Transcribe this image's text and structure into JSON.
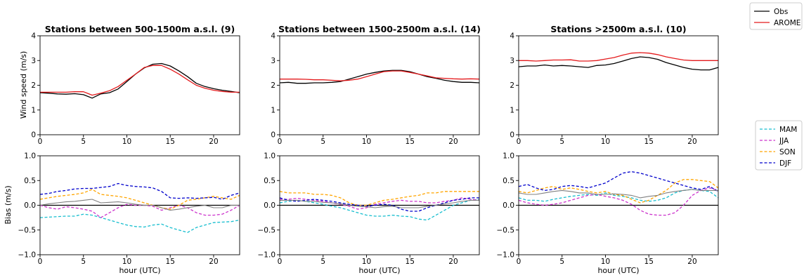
{
  "figure": {
    "top_legend": [
      {
        "label": "Obs",
        "color": "#000000",
        "style": "solid"
      },
      {
        "label": "AROME",
        "color": "#e41a1c",
        "style": "solid"
      }
    ],
    "bottom_legend": [
      {
        "label": "MAM",
        "color": "#17becf",
        "style": "dashed"
      },
      {
        "label": "JJA",
        "color": "#cc33cc",
        "style": "dashed"
      },
      {
        "label": "SON",
        "color": "#ffa500",
        "style": "dashed"
      },
      {
        "label": "DJF",
        "color": "#0000cc",
        "style": "dashed"
      }
    ],
    "xlabel": "hour (UTC)",
    "ylabel_top": "Wind speed (m/s)",
    "ylabel_bottom": "Bias (m/s)",
    "mean_bias_color": "#808080",
    "zero_line_color": "#000000"
  },
  "chart_data": [
    {
      "type": "line",
      "title": "Stations between 500-1500m a.s.l. (9)",
      "x": [
        0,
        1,
        2,
        3,
        4,
        5,
        6,
        7,
        8,
        9,
        10,
        11,
        12,
        13,
        14,
        15,
        16,
        17,
        18,
        19,
        20,
        21,
        22,
        23
      ],
      "xlim": [
        0,
        23
      ],
      "xticks": [
        0,
        5,
        10,
        15,
        20
      ],
      "ylim": [
        0,
        4
      ],
      "yticks": [
        0,
        1,
        2,
        3,
        4
      ],
      "series": [
        {
          "name": "Obs",
          "values": [
            1.7,
            1.68,
            1.65,
            1.64,
            1.66,
            1.62,
            1.48,
            1.65,
            1.7,
            1.85,
            2.15,
            2.45,
            2.7,
            2.85,
            2.88,
            2.78,
            2.58,
            2.35,
            2.08,
            1.95,
            1.86,
            1.8,
            1.75,
            1.7
          ]
        },
        {
          "name": "AROME",
          "values": [
            1.72,
            1.72,
            1.72,
            1.72,
            1.74,
            1.74,
            1.6,
            1.68,
            1.78,
            1.95,
            2.2,
            2.45,
            2.72,
            2.8,
            2.8,
            2.65,
            2.45,
            2.22,
            2.0,
            1.88,
            1.8,
            1.75,
            1.72,
            1.72
          ]
        }
      ]
    },
    {
      "type": "line",
      "title": "Stations between 1500-2500m a.s.l. (14)",
      "x": [
        0,
        1,
        2,
        3,
        4,
        5,
        6,
        7,
        8,
        9,
        10,
        11,
        12,
        13,
        14,
        15,
        16,
        17,
        18,
        19,
        20,
        21,
        22,
        23
      ],
      "xlim": [
        0,
        23
      ],
      "xticks": [
        0,
        5,
        10,
        15,
        20
      ],
      "ylim": [
        0,
        4
      ],
      "yticks": [
        0,
        1,
        2,
        3,
        4
      ],
      "series": [
        {
          "name": "Obs",
          "values": [
            2.1,
            2.12,
            2.08,
            2.08,
            2.1,
            2.1,
            2.12,
            2.15,
            2.25,
            2.35,
            2.45,
            2.52,
            2.58,
            2.6,
            2.6,
            2.55,
            2.45,
            2.35,
            2.28,
            2.2,
            2.15,
            2.12,
            2.12,
            2.1
          ]
        },
        {
          "name": "AROME",
          "values": [
            2.25,
            2.25,
            2.25,
            2.24,
            2.22,
            2.22,
            2.2,
            2.18,
            2.2,
            2.25,
            2.35,
            2.45,
            2.55,
            2.58,
            2.58,
            2.52,
            2.45,
            2.38,
            2.3,
            2.28,
            2.26,
            2.25,
            2.26,
            2.25
          ]
        }
      ]
    },
    {
      "type": "line",
      "title": "Stations >2500m a.s.l. (10)",
      "x": [
        0,
        1,
        2,
        3,
        4,
        5,
        6,
        7,
        8,
        9,
        10,
        11,
        12,
        13,
        14,
        15,
        16,
        17,
        18,
        19,
        20,
        21,
        22,
        23
      ],
      "xlim": [
        0,
        23
      ],
      "xticks": [
        0,
        5,
        10,
        15,
        20
      ],
      "ylim": [
        0,
        4
      ],
      "yticks": [
        0,
        1,
        2,
        3,
        4
      ],
      "series": [
        {
          "name": "Obs",
          "values": [
            2.75,
            2.78,
            2.78,
            2.82,
            2.78,
            2.8,
            2.78,
            2.75,
            2.72,
            2.8,
            2.82,
            2.88,
            2.98,
            3.08,
            3.15,
            3.12,
            3.05,
            2.92,
            2.82,
            2.72,
            2.65,
            2.62,
            2.62,
            2.72
          ]
        },
        {
          "name": "AROME",
          "values": [
            3.0,
            3.0,
            2.98,
            3.0,
            3.02,
            3.02,
            3.03,
            2.98,
            2.98,
            3.0,
            3.06,
            3.12,
            3.22,
            3.3,
            3.32,
            3.3,
            3.24,
            3.15,
            3.08,
            3.02,
            3.0,
            3.0,
            3.0,
            3.0
          ]
        }
      ]
    },
    {
      "type": "line",
      "xlabel": "hour (UTC)",
      "x": [
        0,
        1,
        2,
        3,
        4,
        5,
        6,
        7,
        8,
        9,
        10,
        11,
        12,
        13,
        14,
        15,
        16,
        17,
        18,
        19,
        20,
        21,
        22,
        23
      ],
      "xlim": [
        0,
        23
      ],
      "xticks": [
        0,
        5,
        10,
        15,
        20
      ],
      "ylim": [
        -1,
        1
      ],
      "yticks": [
        -1.0,
        -0.5,
        0.0,
        0.5,
        1.0
      ],
      "series": [
        {
          "name": "MAM",
          "values": [
            -0.25,
            -0.24,
            -0.23,
            -0.22,
            -0.22,
            -0.18,
            -0.2,
            -0.25,
            -0.3,
            -0.35,
            -0.4,
            -0.43,
            -0.44,
            -0.4,
            -0.38,
            -0.45,
            -0.5,
            -0.55,
            -0.45,
            -0.4,
            -0.35,
            -0.34,
            -0.33,
            -0.3
          ]
        },
        {
          "name": "JJA",
          "values": [
            0.0,
            -0.05,
            -0.08,
            -0.03,
            -0.05,
            -0.08,
            -0.12,
            -0.25,
            -0.15,
            -0.05,
            0.02,
            0.0,
            0.0,
            -0.02,
            -0.1,
            -0.05,
            0.0,
            -0.05,
            -0.15,
            -0.2,
            -0.2,
            -0.18,
            -0.1,
            0.0
          ]
        },
        {
          "name": "SON",
          "values": [
            0.12,
            0.15,
            0.18,
            0.2,
            0.22,
            0.25,
            0.32,
            0.22,
            0.2,
            0.18,
            0.15,
            0.1,
            0.05,
            0.0,
            -0.05,
            -0.08,
            0.0,
            0.1,
            0.12,
            0.15,
            0.18,
            0.15,
            0.12,
            0.2
          ]
        },
        {
          "name": "DJF",
          "values": [
            0.22,
            0.24,
            0.28,
            0.3,
            0.33,
            0.34,
            0.34,
            0.36,
            0.38,
            0.44,
            0.4,
            0.38,
            0.37,
            0.35,
            0.28,
            0.15,
            0.14,
            0.15,
            0.14,
            0.15,
            0.16,
            0.12,
            0.2,
            0.25
          ]
        },
        {
          "name": "",
          "values": [
            0.0,
            0.03,
            0.05,
            0.07,
            0.08,
            0.1,
            0.12,
            0.05,
            0.06,
            0.07,
            0.05,
            0.02,
            0.0,
            0.0,
            -0.05,
            -0.1,
            -0.08,
            -0.05,
            -0.02,
            0.0,
            -0.05,
            -0.05,
            0.0,
            0.0
          ]
        }
      ]
    },
    {
      "type": "line",
      "xlabel": "hour (UTC)",
      "x": [
        0,
        1,
        2,
        3,
        4,
        5,
        6,
        7,
        8,
        9,
        10,
        11,
        12,
        13,
        14,
        15,
        16,
        17,
        18,
        19,
        20,
        21,
        22,
        23
      ],
      "xlim": [
        0,
        23
      ],
      "xticks": [
        0,
        5,
        10,
        15,
        20
      ],
      "ylim": [
        -1,
        1
      ],
      "yticks": [
        -1.0,
        -0.5,
        0.0,
        0.5,
        1.0
      ],
      "series": [
        {
          "name": "MAM",
          "values": [
            0.05,
            0.08,
            0.1,
            0.08,
            0.05,
            0.02,
            -0.02,
            -0.05,
            -0.1,
            -0.15,
            -0.2,
            -0.22,
            -0.22,
            -0.2,
            -0.22,
            -0.23,
            -0.28,
            -0.3,
            -0.2,
            -0.1,
            0.0,
            0.05,
            0.1,
            0.12
          ]
        },
        {
          "name": "JJA",
          "values": [
            0.12,
            0.12,
            0.14,
            0.12,
            0.1,
            0.08,
            0.05,
            0.02,
            -0.02,
            -0.08,
            -0.05,
            0.02,
            0.05,
            0.08,
            0.1,
            0.08,
            0.08,
            0.05,
            0.05,
            0.08,
            0.1,
            0.15,
            0.12,
            0.1
          ]
        },
        {
          "name": "SON",
          "values": [
            0.28,
            0.25,
            0.25,
            0.25,
            0.22,
            0.22,
            0.2,
            0.15,
            0.05,
            0.0,
            0.0,
            0.05,
            0.1,
            0.12,
            0.15,
            0.18,
            0.2,
            0.25,
            0.25,
            0.28,
            0.28,
            0.28,
            0.28,
            0.28
          ]
        },
        {
          "name": "DJF",
          "values": [
            0.15,
            0.1,
            0.08,
            0.1,
            0.12,
            0.1,
            0.08,
            0.05,
            0.02,
            0.0,
            -0.02,
            0.0,
            0.02,
            0.0,
            -0.08,
            -0.12,
            -0.12,
            -0.05,
            0.0,
            0.05,
            0.1,
            0.12,
            0.15,
            0.15
          ]
        },
        {
          "name": "",
          "values": [
            0.1,
            0.1,
            0.1,
            0.08,
            0.08,
            0.06,
            0.05,
            0.03,
            0.0,
            -0.02,
            -0.03,
            -0.05,
            -0.03,
            -0.02,
            -0.05,
            -0.05,
            -0.05,
            -0.02,
            0.0,
            0.03,
            0.05,
            0.08,
            0.1,
            0.1
          ]
        }
      ]
    },
    {
      "type": "line",
      "xlabel": "hour (UTC)",
      "x": [
        0,
        1,
        2,
        3,
        4,
        5,
        6,
        7,
        8,
        9,
        10,
        11,
        12,
        13,
        14,
        15,
        16,
        17,
        18,
        19,
        20,
        21,
        22,
        23
      ],
      "xlim": [
        0,
        23
      ],
      "xticks": [
        0,
        5,
        10,
        15,
        20
      ],
      "ylim": [
        -1,
        1
      ],
      "yticks": [
        -1.0,
        -0.5,
        0.0,
        0.5,
        1.0
      ],
      "series": [
        {
          "name": "MAM",
          "values": [
            0.15,
            0.1,
            0.1,
            0.08,
            0.12,
            0.15,
            0.18,
            0.2,
            0.22,
            0.2,
            0.25,
            0.2,
            0.18,
            0.15,
            0.1,
            0.08,
            0.1,
            0.15,
            0.25,
            0.3,
            0.32,
            0.3,
            0.28,
            0.15
          ]
        },
        {
          "name": "JJA",
          "values": [
            0.1,
            0.05,
            0.02,
            0.0,
            0.02,
            0.05,
            0.1,
            0.15,
            0.2,
            0.22,
            0.18,
            0.15,
            0.1,
            0.02,
            -0.1,
            -0.18,
            -0.2,
            -0.2,
            -0.15,
            0.0,
            0.2,
            0.3,
            0.35,
            0.3
          ]
        },
        {
          "name": "SON",
          "values": [
            0.28,
            0.25,
            0.3,
            0.35,
            0.38,
            0.32,
            0.35,
            0.32,
            0.28,
            0.25,
            0.28,
            0.22,
            0.2,
            0.12,
            0.05,
            0.1,
            0.2,
            0.3,
            0.45,
            0.52,
            0.52,
            0.5,
            0.48,
            0.35
          ]
        },
        {
          "name": "DJF",
          "values": [
            0.38,
            0.42,
            0.35,
            0.3,
            0.32,
            0.38,
            0.4,
            0.38,
            0.35,
            0.4,
            0.45,
            0.55,
            0.65,
            0.68,
            0.65,
            0.6,
            0.55,
            0.5,
            0.45,
            0.4,
            0.35,
            0.32,
            0.38,
            0.28
          ]
        },
        {
          "name": "",
          "values": [
            0.25,
            0.22,
            0.22,
            0.25,
            0.28,
            0.3,
            0.28,
            0.25,
            0.25,
            0.22,
            0.22,
            0.23,
            0.22,
            0.2,
            0.15,
            0.18,
            0.2,
            0.25,
            0.28,
            0.3,
            0.32,
            0.3,
            0.3,
            0.3
          ]
        }
      ]
    }
  ]
}
